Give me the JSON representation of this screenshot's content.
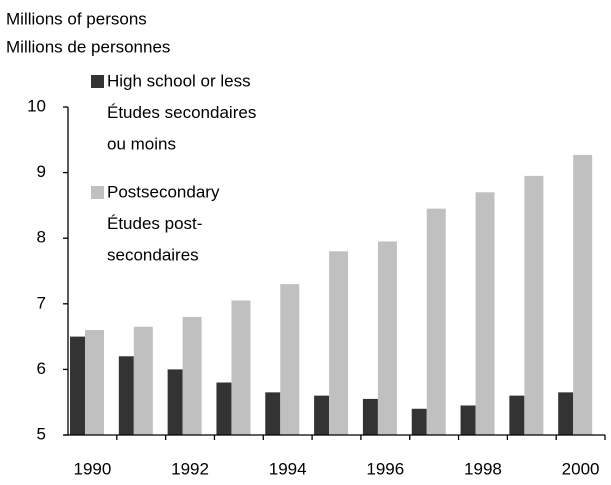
{
  "chart_data": {
    "type": "bar",
    "y_label": [
      "Millions of persons",
      "Millions de personnes"
    ],
    "categories": [
      "1990",
      null,
      "1992",
      null,
      "1994",
      null,
      "1996",
      null,
      "1998",
      null,
      "2000"
    ],
    "series": [
      {
        "name": [
          "High school or less",
          "Études secondaires",
          "ou moins"
        ],
        "color": "#333333",
        "values": [
          6.5,
          6.2,
          6.0,
          5.8,
          5.65,
          5.6,
          5.55,
          5.4,
          5.45,
          5.6,
          5.65
        ]
      },
      {
        "name": [
          "Postsecondary",
          "Études post-",
          "secondaires"
        ],
        "color": "#c0c0c0",
        "values": [
          6.6,
          6.65,
          6.8,
          7.05,
          7.3,
          7.8,
          7.95,
          8.45,
          8.7,
          8.95,
          9.27
        ]
      }
    ],
    "ylim": [
      5,
      10
    ],
    "yticks": [
      5,
      6,
      7,
      8,
      9,
      10
    ],
    "grid": false
  }
}
